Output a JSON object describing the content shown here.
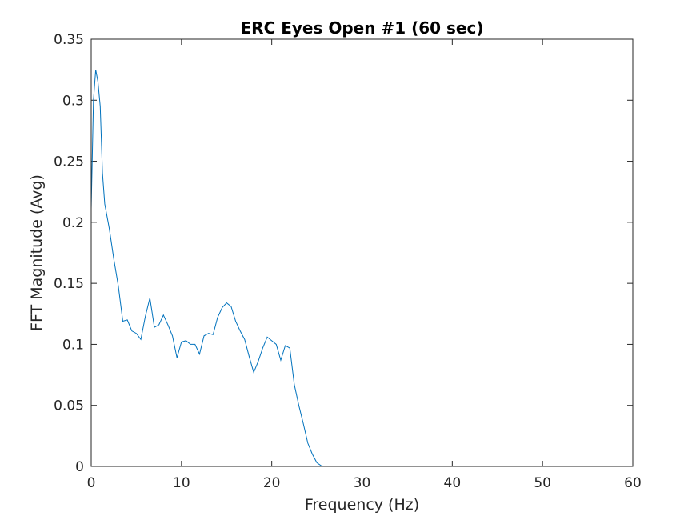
{
  "chart_data": {
    "type": "line",
    "title": "ERC Eyes Open #1 (60 sec)",
    "xlabel": "Frequency (Hz)",
    "ylabel": "FFT Magnitude (Avg)",
    "xlim": [
      0,
      60
    ],
    "ylim": [
      0,
      0.35
    ],
    "xticks": [
      0,
      10,
      20,
      30,
      40,
      50,
      60
    ],
    "yticks": [
      0,
      0.05,
      0.1,
      0.15,
      0.2,
      0.25,
      0.3,
      0.35
    ],
    "xtick_labels": [
      "0",
      "10",
      "20",
      "30",
      "40",
      "50",
      "60"
    ],
    "ytick_labels": [
      "0",
      "0.05",
      "0.1",
      "0.15",
      "0.2",
      "0.25",
      "0.3",
      "0.35"
    ],
    "grid": false,
    "line_color": "#0072BD",
    "series": [
      {
        "x": [
          0,
          0.25,
          0.5,
          0.75,
          1.0,
          1.25,
          1.5,
          2.0,
          2.5,
          3.0,
          3.5,
          4.0,
          4.5,
          5.0,
          5.5,
          6.0,
          6.5,
          7.0,
          7.5,
          8.0,
          8.5,
          9.0,
          9.5,
          10.0,
          10.5,
          11.0,
          11.5,
          12.0,
          12.5,
          13.0,
          13.5,
          14.0,
          14.5,
          15.0,
          15.5,
          16.0,
          16.5,
          17.0,
          17.5,
          18.0,
          18.5,
          19.0,
          19.5,
          20.0,
          20.5,
          21.0,
          21.5,
          22.0,
          22.5,
          23.0,
          23.5,
          24.0,
          24.5,
          25.0,
          25.5,
          26,
          30,
          40,
          50,
          60
        ],
        "y": [
          0.211,
          0.3,
          0.325,
          0.315,
          0.295,
          0.24,
          0.215,
          0.195,
          0.17,
          0.148,
          0.119,
          0.12,
          0.111,
          0.109,
          0.104,
          0.123,
          0.138,
          0.114,
          0.116,
          0.124,
          0.116,
          0.107,
          0.089,
          0.102,
          0.103,
          0.1,
          0.1,
          0.092,
          0.107,
          0.109,
          0.108,
          0.122,
          0.13,
          0.134,
          0.131,
          0.119,
          0.111,
          0.104,
          0.09,
          0.077,
          0.086,
          0.097,
          0.106,
          0.103,
          0.1,
          0.087,
          0.099,
          0.097,
          0.067,
          0.05,
          0.035,
          0.019,
          0.01,
          0.003,
          0.0005,
          0,
          0,
          0,
          0,
          0
        ]
      }
    ]
  }
}
